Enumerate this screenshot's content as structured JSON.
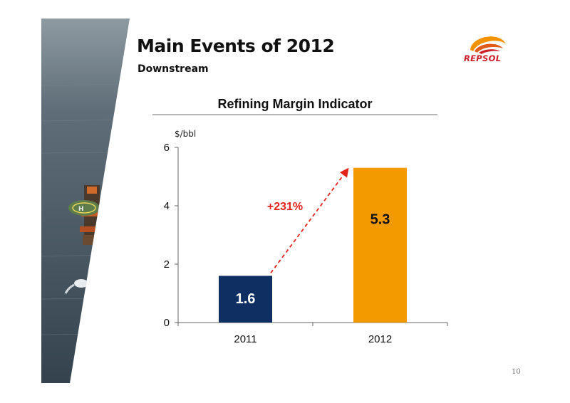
{
  "slide": {
    "title": "Main Events of 2012",
    "subtitle": "Downstream",
    "page_number": "10",
    "brand_name": "REPSOL",
    "colors": {
      "brand_red": "#cc1f2a",
      "brand_orange": "#f39200",
      "sea": "#3e4f5c"
    }
  },
  "chart_data": {
    "type": "bar",
    "title": "Refining Margin Indicator",
    "ylabel": "$/bbl",
    "xlabel": "",
    "categories": [
      "2011",
      "2012"
    ],
    "values": [
      1.6,
      5.3
    ],
    "value_labels": [
      "1.6",
      "5.3"
    ],
    "bar_colors": [
      "#0f2f63",
      "#f39a00"
    ],
    "ylim": [
      0,
      6
    ],
    "yticks": [
      0,
      2,
      4,
      6
    ],
    "grid": false,
    "legend": "none",
    "annotation": {
      "text": "+231%",
      "color": "#e2231a",
      "arrow": "dashed red arrow from 2011 bar top to 2012 bar top"
    }
  }
}
